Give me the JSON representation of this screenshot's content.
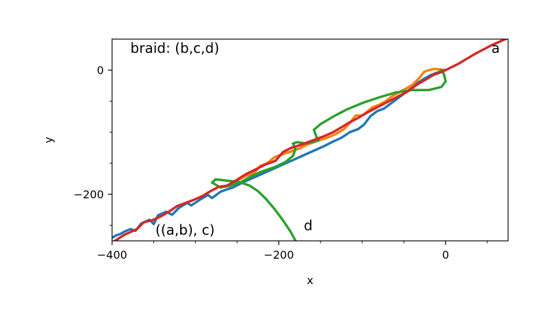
{
  "chart_data": {
    "type": "line",
    "title": "",
    "xlabel": "x",
    "ylabel": "y",
    "xlim": [
      -400,
      75
    ],
    "ylim": [
      -275,
      50
    ],
    "x_ticks": [
      -400,
      -200,
      0
    ],
    "x_tick_labels": [
      "−400",
      "−200",
      "0"
    ],
    "y_ticks": [
      -200,
      0
    ],
    "y_tick_labels": [
      "−200",
      "0"
    ],
    "grid": false,
    "annotations": [
      {
        "text": "braid: (b,c,d)",
        "x": -378,
        "y": 28
      },
      {
        "text": "a",
        "x": 55,
        "y": 28
      },
      {
        "text": "((a,b), c)",
        "x": -348,
        "y": -265
      },
      {
        "text": "d",
        "x": -170,
        "y": -258
      }
    ],
    "series": [
      {
        "color": "#1f77b4",
        "points": [
          [
            -400,
            -270
          ],
          [
            -395,
            -266
          ],
          [
            -390,
            -264
          ],
          [
            -385,
            -260
          ],
          [
            -378,
            -256
          ],
          [
            -372,
            -259
          ],
          [
            -365,
            -247
          ],
          [
            -355,
            -241
          ],
          [
            -350,
            -248
          ],
          [
            -345,
            -234
          ],
          [
            -335,
            -228
          ],
          [
            -328,
            -233
          ],
          [
            -320,
            -222
          ],
          [
            -310,
            -214
          ],
          [
            -305,
            -218
          ],
          [
            -295,
            -209
          ],
          [
            -285,
            -201
          ],
          [
            -280,
            -206
          ],
          [
            -270,
            -196
          ],
          [
            -262,
            -192
          ],
          [
            -255,
            -189
          ],
          [
            -245,
            -182
          ],
          [
            -235,
            -176
          ],
          [
            -225,
            -170
          ],
          [
            -215,
            -164
          ],
          [
            -205,
            -158
          ],
          [
            -195,
            -152
          ],
          [
            -185,
            -146
          ],
          [
            -175,
            -140
          ],
          [
            -165,
            -134
          ],
          [
            -155,
            -128
          ],
          [
            -145,
            -122
          ],
          [
            -135,
            -115
          ],
          [
            -125,
            -109
          ],
          [
            -115,
            -100
          ],
          [
            -105,
            -95
          ],
          [
            -98,
            -88
          ],
          [
            -90,
            -74
          ],
          [
            -82,
            -66
          ],
          [
            -74,
            -62
          ],
          [
            -66,
            -54
          ],
          [
            -58,
            -46
          ],
          [
            -50,
            -38
          ],
          [
            -42,
            -30
          ],
          [
            -34,
            -21
          ],
          [
            -26,
            -14
          ],
          [
            -18,
            -8
          ],
          [
            -10,
            -4
          ],
          [
            0,
            0
          ]
        ]
      },
      {
        "color": "#ff7f0e",
        "points": [
          [
            -260,
            -186
          ],
          [
            -250,
            -178
          ],
          [
            -242,
            -172
          ],
          [
            -235,
            -168
          ],
          [
            -228,
            -163
          ],
          [
            -222,
            -154
          ],
          [
            -214,
            -150
          ],
          [
            -205,
            -140
          ],
          [
            -195,
            -135
          ],
          [
            -185,
            -131
          ],
          [
            -175,
            -126
          ],
          [
            -168,
            -121
          ],
          [
            -160,
            -117
          ],
          [
            -152,
            -113
          ],
          [
            -142,
            -109
          ],
          [
            -132,
            -103
          ],
          [
            -122,
            -95
          ],
          [
            -114,
            -84
          ],
          [
            -108,
            -73
          ],
          [
            -100,
            -73
          ],
          [
            -94,
            -67
          ],
          [
            -88,
            -60
          ],
          [
            -80,
            -56
          ],
          [
            -72,
            -50
          ],
          [
            -64,
            -42
          ],
          [
            -56,
            -36
          ],
          [
            -48,
            -30
          ],
          [
            -40,
            -24
          ],
          [
            -34,
            -16
          ],
          [
            -30,
            -10
          ],
          [
            -26,
            -3
          ],
          [
            -20,
            0
          ],
          [
            -14,
            2
          ],
          [
            -6,
            1
          ],
          [
            0,
            0
          ]
        ]
      },
      {
        "color": "#2ca02c",
        "points": [
          [
            -180,
            -275
          ],
          [
            -186,
            -260
          ],
          [
            -195,
            -242
          ],
          [
            -205,
            -224
          ],
          [
            -215,
            -208
          ],
          [
            -225,
            -195
          ],
          [
            -235,
            -186
          ],
          [
            -248,
            -180
          ],
          [
            -262,
            -178
          ],
          [
            -276,
            -176
          ],
          [
            -280,
            -181
          ],
          [
            -270,
            -189
          ],
          [
            -258,
            -186
          ],
          [
            -245,
            -180
          ],
          [
            -232,
            -170
          ],
          [
            -220,
            -163
          ],
          [
            -205,
            -156
          ],
          [
            -192,
            -148
          ],
          [
            -183,
            -138
          ],
          [
            -180,
            -127
          ],
          [
            -183,
            -118
          ],
          [
            -178,
            -116
          ],
          [
            -168,
            -118
          ],
          [
            -160,
            -116
          ],
          [
            -152,
            -113
          ],
          [
            -155,
            -107
          ],
          [
            -158,
            -96
          ],
          [
            -150,
            -87
          ],
          [
            -135,
            -75
          ],
          [
            -118,
            -63
          ],
          [
            -100,
            -53
          ],
          [
            -80,
            -44
          ],
          [
            -60,
            -36
          ],
          [
            -40,
            -32
          ],
          [
            -20,
            -32
          ],
          [
            -5,
            -27
          ],
          [
            0,
            -18
          ],
          [
            -2,
            -6
          ],
          [
            -6,
            0
          ],
          [
            0,
            0
          ]
        ]
      },
      {
        "color": "#d62728",
        "points": [
          [
            -400,
            -278
          ],
          [
            -385,
            -265
          ],
          [
            -370,
            -256
          ],
          [
            -362,
            -245
          ],
          [
            -352,
            -242
          ],
          [
            -342,
            -236
          ],
          [
            -332,
            -228
          ],
          [
            -322,
            -219
          ],
          [
            -312,
            -214
          ],
          [
            -302,
            -209
          ],
          [
            -292,
            -203
          ],
          [
            -282,
            -195
          ],
          [
            -272,
            -188
          ],
          [
            -262,
            -186
          ],
          [
            -252,
            -178
          ],
          [
            -240,
            -168
          ],
          [
            -228,
            -160
          ],
          [
            -216,
            -152
          ],
          [
            -204,
            -146
          ],
          [
            -195,
            -132
          ],
          [
            -185,
            -125
          ],
          [
            -175,
            -121
          ],
          [
            -165,
            -116
          ],
          [
            -155,
            -111
          ],
          [
            -145,
            -106
          ],
          [
            -135,
            -100
          ],
          [
            -125,
            -92
          ],
          [
            -115,
            -84
          ],
          [
            -105,
            -77
          ],
          [
            -95,
            -69
          ],
          [
            -85,
            -62
          ],
          [
            -75,
            -55
          ],
          [
            -65,
            -48
          ],
          [
            -55,
            -41
          ],
          [
            -45,
            -34
          ],
          [
            -35,
            -24
          ],
          [
            -25,
            -16
          ],
          [
            -15,
            -8
          ],
          [
            -5,
            -3
          ],
          [
            0,
            0
          ],
          [
            15,
            10
          ],
          [
            35,
            26
          ],
          [
            55,
            40
          ],
          [
            75,
            52
          ]
        ]
      }
    ]
  }
}
